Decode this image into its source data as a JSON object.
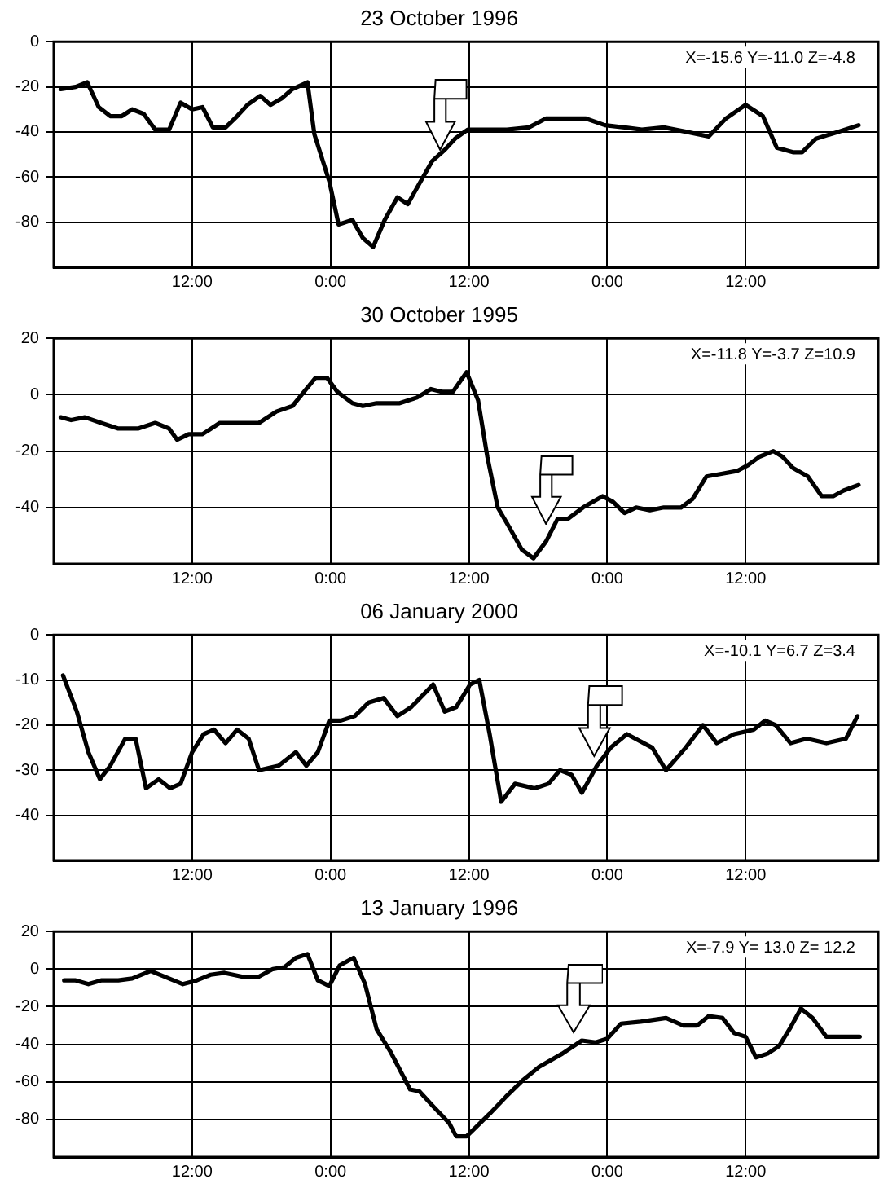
{
  "chart_data": [
    {
      "type": "line",
      "title": "23 October 1996",
      "color": "#000000",
      "marker": "none",
      "grid": true,
      "annotations": [
        "X=-15.6 Y=-11.0 Z=-4.8"
      ],
      "xlim": [
        "1996-10-22T00:00",
        "1996-10-24T23:30"
      ],
      "xticks": [
        {
          "value": "1996-10-22T12:00",
          "label": "12:00"
        },
        {
          "value": "1996-10-23T00:00",
          "label": "0:00"
        },
        {
          "value": "1996-10-23T12:00",
          "label": "12:00"
        },
        {
          "value": "1996-10-24T00:00",
          "label": "0:00"
        },
        {
          "value": "1996-10-24T12:00",
          "label": "12:00"
        }
      ],
      "ylim": [
        -100,
        0
      ],
      "yticks": [
        0,
        -20,
        -40,
        -60,
        -80
      ],
      "x": [
        "1996-10-22T00:36",
        "1996-10-22T01:54",
        "1996-10-22T02:54",
        "1996-10-22T03:54",
        "1996-10-22T04:54",
        "1996-10-22T05:54",
        "1996-10-22T06:48",
        "1996-10-22T07:48",
        "1996-10-22T08:48",
        "1996-10-22T10:00",
        "1996-10-22T11:00",
        "1996-10-22T12:00",
        "1996-10-22T12:54",
        "1996-10-22T13:48",
        "1996-10-22T14:54",
        "1996-10-22T15:54",
        "1996-10-22T16:48",
        "1996-10-22T17:54",
        "1996-10-22T18:48",
        "1996-10-22T19:48",
        "1996-10-22T20:42",
        "1996-10-22T22:00",
        "1996-10-22T22:36",
        "1996-10-22T23:54",
        "1996-10-23T00:42",
        "1996-10-23T01:54",
        "1996-10-23T02:48",
        "1996-10-23T03:42",
        "1996-10-23T04:42",
        "1996-10-23T05:48",
        "1996-10-23T06:42",
        "1996-10-23T07:42",
        "1996-10-23T08:48",
        "1996-10-23T09:54",
        "1996-10-23T10:48",
        "1996-10-23T11:54",
        "1996-10-23T13:48",
        "1996-10-23T15:18",
        "1996-10-23T17:12",
        "1996-10-23T18:42",
        "1996-10-23T20:06",
        "1996-10-23T22:06",
        "1996-10-23T23:48",
        "1996-10-24T01:30",
        "1996-10-24T03:00",
        "1996-10-24T04:54",
        "1996-10-24T06:54",
        "1996-10-24T08:48",
        "1996-10-24T10:18",
        "1996-10-24T12:00",
        "1996-10-24T13:30",
        "1996-10-24T14:42",
        "1996-10-24T16:06",
        "1996-10-24T16:54",
        "1996-10-24T18:06",
        "1996-10-24T20:00",
        "1996-10-24T21:48"
      ],
      "values": [
        -21,
        -20,
        -18,
        -29,
        -33,
        -33,
        -30,
        -32,
        -39,
        -39,
        -27,
        -30,
        -29,
        -38,
        -38,
        -33,
        -28,
        -24,
        -28,
        -25,
        -21,
        -18,
        -41,
        -62,
        -81,
        -79,
        -87,
        -91,
        -79,
        -69,
        -72,
        -63,
        -53,
        -48,
        -43,
        -39,
        -39,
        -39,
        -38,
        -34,
        -34,
        -34,
        -37,
        -38,
        -39,
        -38,
        -40,
        -42,
        -34,
        -28,
        -33,
        -47,
        -49,
        -49,
        -43,
        -40,
        -37
      ]
    },
    {
      "type": "line",
      "title": "30 October 1995",
      "color": "#000000",
      "marker": "none",
      "grid": true,
      "annotations": [
        "X=-11.8 Y=-3.7 Z=10.9"
      ],
      "xlim": [
        "1995-10-29T00:00",
        "1995-10-31T23:30"
      ],
      "xticks": [
        {
          "value": "1995-10-29T12:00",
          "label": "12:00"
        },
        {
          "value": "1995-10-30T00:00",
          "label": "0:00"
        },
        {
          "value": "1995-10-30T12:00",
          "label": "12:00"
        },
        {
          "value": "1995-10-31T00:00",
          "label": "0:00"
        },
        {
          "value": "1995-10-31T12:00",
          "label": "12:00"
        }
      ],
      "ylim": [
        -60,
        20
      ],
      "yticks": [
        20,
        0,
        -20,
        -40
      ],
      "x": [
        "1995-10-29T00:36",
        "1995-10-29T01:30",
        "1995-10-29T02:42",
        "1995-10-29T04:06",
        "1995-10-29T05:36",
        "1995-10-29T07:18",
        "1995-10-29T08:48",
        "1995-10-29T10:00",
        "1995-10-29T10:42",
        "1995-10-29T11:42",
        "1995-10-29T12:54",
        "1995-10-29T14:24",
        "1995-10-29T15:54",
        "1995-10-29T17:48",
        "1995-10-29T19:18",
        "1995-10-29T20:42",
        "1995-10-29T21:42",
        "1995-10-29T22:42",
        "1995-10-29T23:42",
        "1995-10-30T00:36",
        "1995-10-30T01:54",
        "1995-10-30T02:48",
        "1995-10-30T04:00",
        "1995-10-30T06:00",
        "1995-10-30T07:30",
        "1995-10-30T08:42",
        "1995-10-30T09:42",
        "1995-10-30T10:36",
        "1995-10-30T11:48",
        "1995-10-30T12:48",
        "1995-10-30T13:36",
        "1995-10-30T14:30",
        "1995-10-30T15:30",
        "1995-10-30T16:36",
        "1995-10-30T17:36",
        "1995-10-30T18:42",
        "1995-10-30T19:42",
        "1995-10-30T20:36",
        "1995-10-30T21:54",
        "1995-10-30T23:36",
        "1995-10-31T00:30",
        "1995-10-31T01:30",
        "1995-10-31T02:30",
        "1995-10-31T03:42",
        "1995-10-31T04:54",
        "1995-10-31T06:24",
        "1995-10-31T07:24",
        "1995-10-31T08:36",
        "1995-10-31T10:00",
        "1995-10-31T11:18",
        "1995-10-31T12:12",
        "1995-10-31T13:12",
        "1995-10-31T14:24",
        "1995-10-31T15:12",
        "1995-10-31T16:06",
        "1995-10-31T17:24",
        "1995-10-31T18:36",
        "1995-10-31T19:36",
        "1995-10-31T20:30",
        "1995-10-31T21:48"
      ],
      "values": [
        -8,
        -9,
        -8,
        -10,
        -12,
        -12,
        -10,
        -12,
        -16,
        -14,
        -14,
        -10,
        -10,
        -10,
        -6,
        -4,
        1,
        6,
        6,
        1,
        -3,
        -4,
        -3,
        -3,
        -1,
        2,
        1,
        1,
        8,
        -2,
        -22,
        -40,
        -47,
        -55,
        -58,
        -52,
        -44,
        -44,
        -40,
        -36,
        -38,
        -42,
        -40,
        -41,
        -40,
        -40,
        -37,
        -29,
        -28,
        -27,
        -25,
        -22,
        -20,
        -22,
        -26,
        -29,
        -36,
        -36,
        -34,
        -32
      ]
    },
    {
      "type": "line",
      "title": "06 January 2000",
      "color": "#000000",
      "marker": "none",
      "grid": true,
      "annotations": [
        "X=-10.1 Y=6.7 Z=3.4"
      ],
      "xlim": [
        "2000-01-05T00:00",
        "2000-01-07T23:30"
      ],
      "xticks": [
        {
          "value": "2000-01-05T12:00",
          "label": "12:00"
        },
        {
          "value": "2000-01-06T00:00",
          "label": "0:00"
        },
        {
          "value": "2000-01-06T12:00",
          "label": "12:00"
        },
        {
          "value": "2000-01-07T00:00",
          "label": "0:00"
        },
        {
          "value": "2000-01-07T12:00",
          "label": "12:00"
        }
      ],
      "ylim": [
        -50,
        0
      ],
      "yticks": [
        0,
        -10,
        -20,
        -30,
        -40
      ],
      "x": [
        "2000-01-05T00:48",
        "2000-01-05T02:00",
        "2000-01-05T03:00",
        "2000-01-05T04:00",
        "2000-01-05T04:54",
        "2000-01-05T06:12",
        "2000-01-05T07:06",
        "2000-01-05T08:00",
        "2000-01-05T09:06",
        "2000-01-05T10:06",
        "2000-01-05T11:00",
        "2000-01-05T12:00",
        "2000-01-05T13:00",
        "2000-01-05T13:54",
        "2000-01-05T14:54",
        "2000-01-05T15:54",
        "2000-01-05T16:54",
        "2000-01-05T17:48",
        "2000-01-05T19:30",
        "2000-01-05T21:00",
        "2000-01-05T21:54",
        "2000-01-05T22:54",
        "2000-01-05T23:54",
        "2000-01-06T00:54",
        "2000-01-06T02:06",
        "2000-01-06T03:18",
        "2000-01-06T04:36",
        "2000-01-06T05:48",
        "2000-01-06T07:00",
        "2000-01-06T08:54",
        "2000-01-06T09:54",
        "2000-01-06T10:54",
        "2000-01-06T12:06",
        "2000-01-06T12:54",
        "2000-01-06T13:48",
        "2000-01-06T14:48",
        "2000-01-06T16:00",
        "2000-01-06T17:42",
        "2000-01-06T18:54",
        "2000-01-06T19:54",
        "2000-01-06T20:54",
        "2000-01-06T21:48",
        "2000-01-06T23:06",
        "2000-01-07T00:18",
        "2000-01-07T01:42",
        "2000-01-07T03:54",
        "2000-01-07T05:06",
        "2000-01-07T06:48",
        "2000-01-07T08:18",
        "2000-01-07T09:30",
        "2000-01-07T11:00",
        "2000-01-07T12:42",
        "2000-01-07T13:42",
        "2000-01-07T14:36",
        "2000-01-07T15:54",
        "2000-01-07T17:18",
        "2000-01-07T19:00",
        "2000-01-07T20:42",
        "2000-01-07T21:42"
      ],
      "values": [
        -9,
        -17,
        -26,
        -32,
        -29,
        -23,
        -23,
        -34,
        -32,
        -34,
        -33,
        -26,
        -22,
        -21,
        -24,
        -21,
        -23,
        -30,
        -29,
        -26,
        -29,
        -26,
        -19,
        -19,
        -18,
        -15,
        -14,
        -18,
        -16,
        -11,
        -17,
        -16,
        -11,
        -10,
        -22,
        -37,
        -33,
        -34,
        -33,
        -30,
        -31,
        -35,
        -29,
        -25,
        -22,
        -25,
        -30,
        -25,
        -20,
        -24,
        -22,
        -21,
        -19,
        -20,
        -24,
        -23,
        -24,
        -23,
        -18
      ]
    },
    {
      "type": "line",
      "title": "13 January 1996",
      "color": "#000000",
      "marker": "none",
      "grid": true,
      "annotations": [
        "X=-7.9 Y= 13.0 Z= 12.2"
      ],
      "xlim": [
        "1996-01-12T00:00",
        "1996-01-14T23:30"
      ],
      "xticks": [
        {
          "value": "1996-01-12T12:00",
          "label": "12:00"
        },
        {
          "value": "1996-01-13T00:00",
          "label": "0:00"
        },
        {
          "value": "1996-01-13T12:00",
          "label": "12:00"
        },
        {
          "value": "1996-01-14T00:00",
          "label": "0:00"
        },
        {
          "value": "1996-01-14T12:00",
          "label": "12:00"
        }
      ],
      "ylim": [
        -100,
        20
      ],
      "yticks": [
        20,
        0,
        -20,
        -40,
        -60,
        -80
      ],
      "x": [
        "1996-01-12T00:54",
        "1996-01-12T01:54",
        "1996-01-12T03:00",
        "1996-01-12T04:06",
        "1996-01-12T05:36",
        "1996-01-12T06:48",
        "1996-01-12T08:24",
        "1996-01-12T10:00",
        "1996-01-12T11:12",
        "1996-01-12T12:24",
        "1996-01-12T13:36",
        "1996-01-12T14:48",
        "1996-01-12T16:18",
        "1996-01-12T17:48",
        "1996-01-12T19:00",
        "1996-01-12T20:00",
        "1996-01-12T21:00",
        "1996-01-12T22:00",
        "1996-01-12T22:54",
        "1996-01-12T23:54",
        "1996-01-13T00:48",
        "1996-01-13T02:00",
        "1996-01-13T03:00",
        "1996-01-13T04:00",
        "1996-01-13T05:12",
        "1996-01-13T06:54",
        "1996-01-13T07:42",
        "1996-01-13T08:54",
        "1996-01-13T10:18",
        "1996-01-13T10:54",
        "1996-01-13T11:48",
        "1996-01-13T13:48",
        "1996-01-13T15:12",
        "1996-01-13T16:42",
        "1996-01-13T18:06",
        "1996-01-13T20:06",
        "1996-01-13T21:48",
        "1996-01-13T23:00",
        "1996-01-14T00:00",
        "1996-01-14T01:12",
        "1996-01-14T02:54",
        "1996-01-14T05:06",
        "1996-01-14T06:36",
        "1996-01-14T07:48",
        "1996-01-14T08:48",
        "1996-01-14T10:00",
        "1996-01-14T11:00",
        "1996-01-14T12:00",
        "1996-01-14T12:54",
        "1996-01-14T13:54",
        "1996-01-14T14:54",
        "1996-01-14T15:54",
        "1996-01-14T16:48",
        "1996-01-14T17:48",
        "1996-01-14T19:00",
        "1996-01-14T20:12",
        "1996-01-14T21:54"
      ],
      "values": [
        -6,
        -6,
        -8,
        -6,
        -6,
        -5,
        -1,
        -5,
        -8,
        -6,
        -3,
        -2,
        -4,
        -4,
        0,
        1,
        6,
        8,
        -6,
        -9,
        2,
        6,
        -8,
        -32,
        -44,
        -64,
        -65,
        -73,
        -82,
        -89,
        -89,
        -77,
        -68,
        -59,
        -52,
        -45,
        -38,
        -39,
        -37,
        -29,
        -28,
        -26,
        -30,
        -30,
        -25,
        -26,
        -34,
        -36,
        -47,
        -45,
        -41,
        -31,
        -21,
        -26,
        -36,
        -36,
        -36
      ]
    }
  ]
}
